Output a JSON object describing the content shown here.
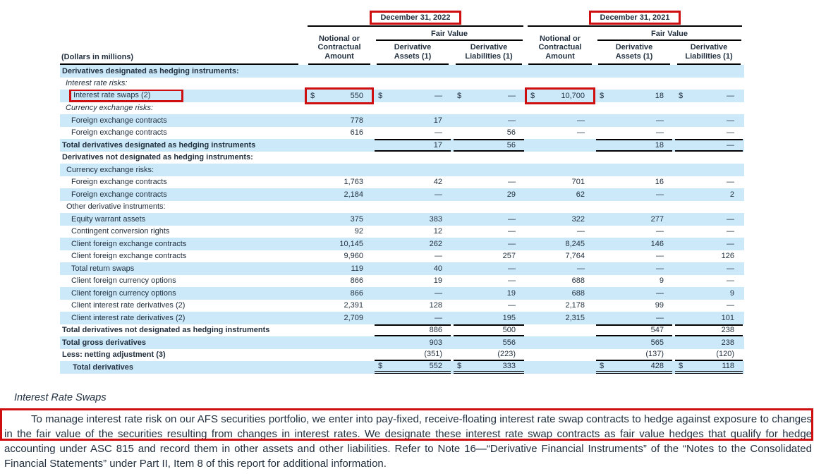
{
  "table": {
    "unit_label": "(Dollars in millions)",
    "columns": {
      "group_2022": "December 31, 2022",
      "group_2021": "December 31, 2021",
      "notional": "Notional or\nContractual\nAmount",
      "fair_value": "Fair Value",
      "assets": "Derivative\nAssets (1)",
      "liabilities": "Derivative\nLiabilities (1)"
    },
    "highlight_color": "#cf0f0f",
    "stripe_color": "#cce9f9",
    "rows": [
      {
        "label": "Derivatives designated as hedging instruments:",
        "style": "section",
        "shaded": true,
        "cells": [
          "",
          "",
          "",
          "",
          "",
          ""
        ]
      },
      {
        "label": "Interest rate risks:",
        "style": "cat-italic",
        "shaded": false,
        "cells": [
          "",
          "",
          "",
          "",
          "",
          ""
        ]
      },
      {
        "label": "Interest rate swaps (2)",
        "style": "item",
        "shaded": true,
        "cells": [
          "550",
          "—",
          "—",
          "10,700",
          "18",
          "—"
        ],
        "dollars": [
          true,
          true,
          true,
          true,
          true,
          true
        ],
        "highlight": {
          "label": true,
          "cells": [
            0,
            3
          ]
        }
      },
      {
        "label": "Currency exchange risks:",
        "style": "cat-italic",
        "shaded": false,
        "cells": [
          "",
          "",
          "",
          "",
          "",
          ""
        ]
      },
      {
        "label": "Foreign exchange contracts",
        "style": "item",
        "shaded": true,
        "cells": [
          "778",
          "17",
          "—",
          "—",
          "—",
          "—"
        ]
      },
      {
        "label": "Foreign exchange contracts",
        "style": "item",
        "shaded": false,
        "cells": [
          "616",
          "—",
          "56",
          "—",
          "—",
          "—"
        ]
      },
      {
        "label": "Total derivatives designated as hedging instruments",
        "style": "total",
        "shaded": true,
        "cells": [
          "",
          "17",
          "56",
          "",
          "18",
          "—"
        ],
        "rules": "tb"
      },
      {
        "label": "Derivatives not designated as hedging instruments:",
        "style": "section",
        "shaded": false,
        "cells": [
          "",
          "",
          "",
          "",
          "",
          ""
        ]
      },
      {
        "label": "Currency exchange risks:",
        "style": "cat",
        "shaded": true,
        "cells": [
          "",
          "",
          "",
          "",
          "",
          ""
        ]
      },
      {
        "label": "Foreign exchange contracts",
        "style": "item",
        "shaded": false,
        "cells": [
          "1,763",
          "42",
          "—",
          "701",
          "16",
          "—"
        ]
      },
      {
        "label": "Foreign exchange contracts",
        "style": "item",
        "shaded": true,
        "cells": [
          "2,184",
          "—",
          "29",
          "62",
          "—",
          "2"
        ]
      },
      {
        "label": "Other derivative instruments:",
        "style": "cat",
        "shaded": false,
        "cells": [
          "",
          "",
          "",
          "",
          "",
          ""
        ]
      },
      {
        "label": "Equity warrant assets",
        "style": "item",
        "shaded": true,
        "cells": [
          "375",
          "383",
          "—",
          "322",
          "277",
          "—"
        ]
      },
      {
        "label": "Contingent conversion rights",
        "style": "item",
        "shaded": false,
        "cells": [
          "92",
          "12",
          "—",
          "—",
          "—",
          "—"
        ]
      },
      {
        "label": "Client foreign exchange contracts",
        "style": "item",
        "shaded": true,
        "cells": [
          "10,145",
          "262",
          "—",
          "8,245",
          "146",
          "—"
        ]
      },
      {
        "label": "Client foreign exchange contracts",
        "style": "item",
        "shaded": false,
        "cells": [
          "9,960",
          "—",
          "257",
          "7,764",
          "—",
          "126"
        ]
      },
      {
        "label": "Total return swaps",
        "style": "item",
        "shaded": true,
        "cells": [
          "119",
          "40",
          "—",
          "—",
          "—",
          "—"
        ]
      },
      {
        "label": "Client foreign currency options",
        "style": "item",
        "shaded": false,
        "cells": [
          "866",
          "19",
          "—",
          "688",
          "9",
          "—"
        ]
      },
      {
        "label": "Client foreign currency options",
        "style": "item",
        "shaded": true,
        "cells": [
          "866",
          "—",
          "19",
          "688",
          "—",
          "9"
        ]
      },
      {
        "label": "Client interest rate derivatives (2)",
        "style": "item",
        "shaded": false,
        "cells": [
          "2,391",
          "128",
          "—",
          "2,178",
          "99",
          "—"
        ]
      },
      {
        "label": "Client interest rate derivatives (2)",
        "style": "item",
        "shaded": true,
        "cells": [
          "2,709",
          "—",
          "195",
          "2,315",
          "—",
          "101"
        ]
      },
      {
        "label": "Total derivatives not designated as hedging instruments",
        "style": "total",
        "shaded": false,
        "cells": [
          "",
          "886",
          "500",
          "",
          "547",
          "238"
        ],
        "rules": "tb"
      },
      {
        "label": "Total gross derivatives",
        "style": "total",
        "shaded": true,
        "cells": [
          "",
          "903",
          "556",
          "",
          "565",
          "238"
        ]
      },
      {
        "label": "Less: netting adjustment (3)",
        "style": "total",
        "shaded": false,
        "cells": [
          "",
          "(351)",
          "(223)",
          "",
          "(137)",
          "(120)"
        ],
        "rules": "b"
      },
      {
        "label": "Total derivatives",
        "style": "grand",
        "shaded": true,
        "cells": [
          "",
          "552",
          "333",
          "",
          "428",
          "118"
        ],
        "dollars": [
          false,
          true,
          true,
          false,
          true,
          true
        ],
        "rules": "dbl"
      }
    ]
  },
  "notes": {
    "heading": "Interest Rate Swaps",
    "paragraph": "To manage interest rate risk on our AFS securities portfolio, we enter into pay-fixed, receive-floating interest rate swap contracts to hedge against exposure to changes in the fair value of the securities resulting from changes in interest rates. We designate these interest rate swap contracts as fair value hedges that qualify for hedge accounting under ASC 815 and record them in other assets and other liabilities. Refer to Note 16—“Derivative Financial Instruments” of the “Notes to the Consolidated Financial Statements” under Part II, Item 8 of this report for additional information."
  }
}
